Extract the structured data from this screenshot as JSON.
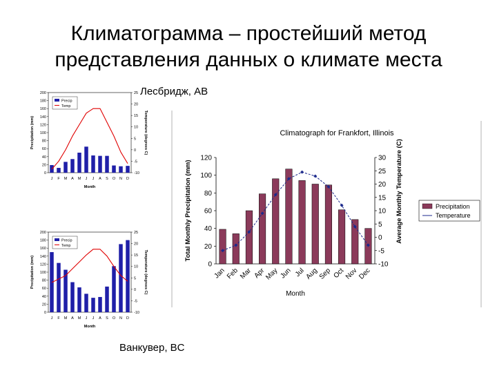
{
  "slide": {
    "title_line1": "Климатограмма – простейший метод",
    "title_line2": "представления данных о климате места",
    "caption_top": "Лесбридж, AB",
    "caption_bottom": "Ванкувер, BC"
  },
  "chart_data": [
    {
      "type": "bar",
      "name": "Лесбридж, AB",
      "categories": [
        "J",
        "F",
        "M",
        "A",
        "M",
        "J",
        "J",
        "A",
        "S",
        "O",
        "N",
        "D"
      ],
      "xlabel": "Month",
      "ylabel": "Precipitation (mm)",
      "y2label": "Temperature (degrees C)",
      "ylim": [
        0,
        200
      ],
      "y2lim": [
        -10,
        25
      ],
      "yticks": [
        0,
        20,
        40,
        60,
        80,
        100,
        120,
        140,
        160,
        180,
        200
      ],
      "y2ticks": [
        -10,
        -5,
        0,
        5,
        10,
        15,
        20,
        25
      ],
      "legend": "top-left",
      "series": [
        {
          "name": "Precip",
          "kind": "bar",
          "axis": "left",
          "color": "#1f1fa8",
          "values": [
            19,
            12,
            27,
            34,
            50,
            65,
            43,
            42,
            42,
            18,
            16,
            17
          ]
        },
        {
          "name": "Temp",
          "kind": "line",
          "axis": "right",
          "color": "#e00000",
          "values": [
            -8.5,
            -5,
            0,
            6,
            11,
            16,
            18,
            18,
            12,
            6,
            -1,
            -6
          ]
        }
      ]
    },
    {
      "type": "bar",
      "name": "Ванкувер, BC",
      "categories": [
        "J",
        "F",
        "M",
        "A",
        "M",
        "J",
        "J",
        "A",
        "S",
        "O",
        "N",
        "D"
      ],
      "xlabel": "Month",
      "ylabel": "Precipitation (mm)",
      "y2label": "Temperature (degrees C)",
      "ylim": [
        0,
        200
      ],
      "y2lim": [
        -10,
        25
      ],
      "yticks": [
        0,
        20,
        40,
        60,
        80,
        100,
        120,
        140,
        160,
        180,
        200
      ],
      "y2ticks": [
        -10,
        -5,
        0,
        5,
        10,
        15,
        20,
        25
      ],
      "legend": "top-left",
      "series": [
        {
          "name": "Precip",
          "kind": "bar",
          "axis": "left",
          "color": "#1f1fa8",
          "values": [
            150,
            123,
            106,
            75,
            62,
            46,
            36,
            38,
            64,
            115,
            170,
            180
          ]
        },
        {
          "name": "Temp",
          "kind": "line",
          "axis": "right",
          "color": "#e00000",
          "values": [
            3,
            4.5,
            6,
            9,
            12,
            15,
            17.5,
            17.5,
            14.5,
            10,
            6,
            3.5
          ]
        }
      ]
    },
    {
      "type": "bar",
      "title": "Climatograph for Frankfort, Illinois",
      "categories": [
        "Jan",
        "Feb",
        "Mar",
        "Apr",
        "May",
        "Jun",
        "Jul",
        "Aug",
        "Sep",
        "Oct",
        "Nov",
        "Dec"
      ],
      "xlabel": "Month",
      "ylabel": "Total Monthly Precipitation (mm)",
      "y2label": "Average Monthly Temperature (C)",
      "ylim": [
        0,
        120
      ],
      "y2lim": [
        -10,
        30
      ],
      "yticks": [
        0,
        20,
        40,
        60,
        80,
        100,
        120
      ],
      "y2ticks": [
        -10,
        -5,
        0,
        5,
        10,
        15,
        20,
        25,
        30
      ],
      "legend": "right",
      "series": [
        {
          "name": "Precipitation",
          "kind": "bar",
          "axis": "left",
          "color": "#8b3a5a",
          "values": [
            39,
            34,
            60,
            79,
            96,
            107,
            94,
            90,
            89,
            61,
            50,
            40
          ]
        },
        {
          "name": "Temperature",
          "kind": "line",
          "axis": "right",
          "color": "#1c2a8c",
          "values": [
            -5,
            -3,
            2,
            9,
            16,
            22,
            24.5,
            23,
            19,
            12,
            4,
            -3
          ]
        }
      ]
    }
  ]
}
